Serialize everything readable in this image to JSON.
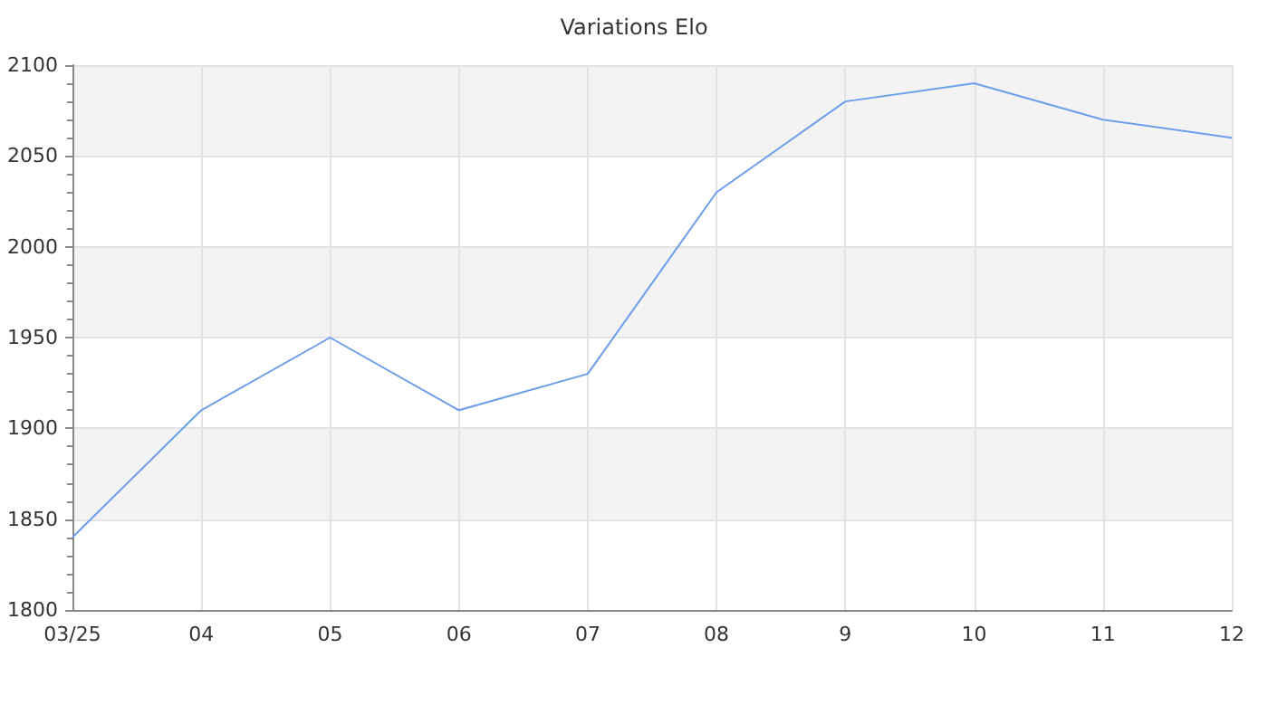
{
  "chart_data": {
    "type": "line",
    "title": "Variations Elo",
    "categories": [
      "03/25",
      "04",
      "05",
      "06",
      "07",
      "08",
      "9",
      "10",
      "11",
      "12"
    ],
    "series": [
      {
        "color": "#6d9eeb",
        "values": [
          1840,
          1910,
          1950,
          1910,
          1930,
          2030,
          2080,
          2090,
          2070,
          2060
        ]
      }
    ],
    "ylim": [
      1800,
      2100
    ],
    "yticks": [
      1800,
      1850,
      1900,
      1950,
      2000,
      2050,
      2100
    ],
    "grid": true,
    "marker": "none",
    "line_style": "solid"
  }
}
